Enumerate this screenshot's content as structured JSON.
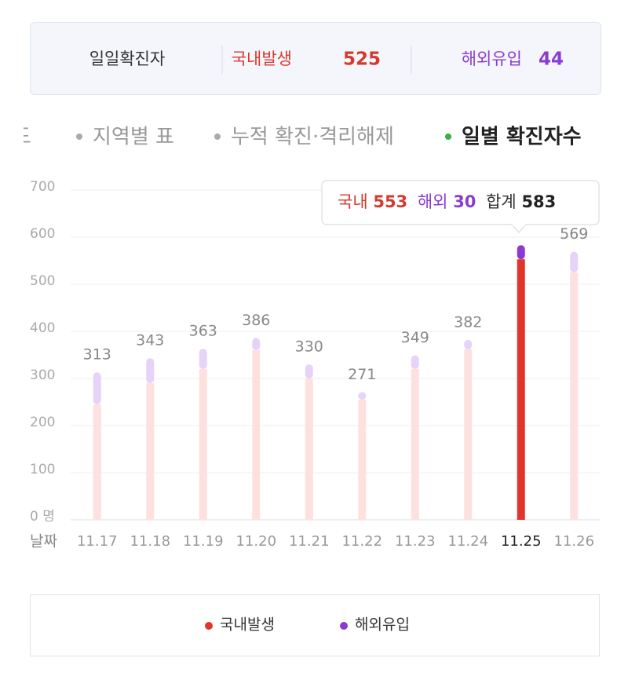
{
  "header": {
    "title": "일일확진자",
    "domestic_label": "국내발생",
    "domestic_value": 525,
    "overseas_label": "해외유입",
    "overseas_value": 44
  },
  "tabs": [
    "지도",
    "지역별 표",
    "누적 확진·격리해제",
    "일별 확진자수"
  ],
  "active_tab": 3,
  "chart_data": {
    "type": "bar",
    "stacked": true,
    "categories": [
      "11.17",
      "11.18",
      "11.19",
      "11.20",
      "11.21",
      "11.22",
      "11.23",
      "11.24",
      "11.25",
      "11.26"
    ],
    "series": [
      {
        "name": "국내발생",
        "color": "#e0352b",
        "light_color": "#fde1df",
        "values": [
          245,
          290,
          320,
          360,
          300,
          255,
          320,
          362,
          553,
          525
        ]
      },
      {
        "name": "해외유입",
        "color": "#8b3bd3",
        "light_color": "#e6d3f8",
        "values": [
          68,
          53,
          43,
          26,
          30,
          16,
          29,
          20,
          30,
          44
        ]
      }
    ],
    "totals": [
      313,
      343,
      363,
      386,
      330,
      271,
      349,
      382,
      583,
      569
    ],
    "ylim": [
      0,
      700
    ],
    "yticks": [
      {
        "value": 0,
        "label": "0 명"
      },
      100,
      200,
      300,
      400,
      500,
      600,
      700
    ],
    "xlabel": "날짜",
    "grid": true,
    "selected": 8,
    "tooltip": {
      "domestic_label": "국내",
      "overseas_label": "해외",
      "total_label": "합계"
    }
  }
}
